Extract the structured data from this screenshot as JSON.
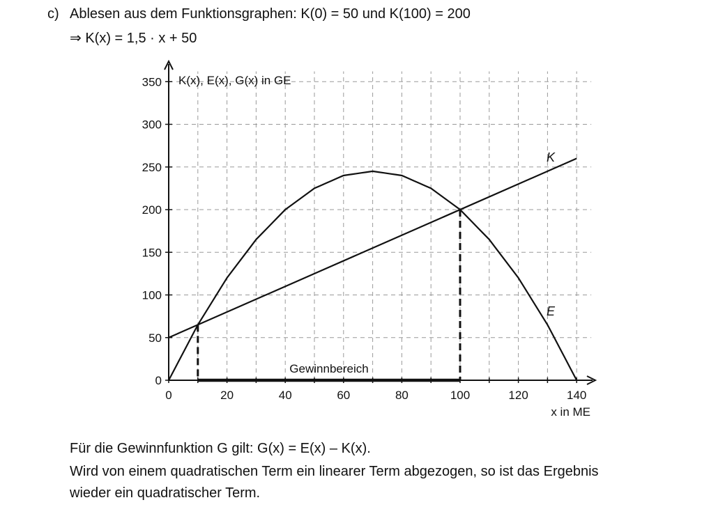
{
  "task": {
    "label": "c)",
    "line1": "Ablesen aus dem Funktionsgraphen:  K(0) = 50  und  K(100) = 200",
    "line2": "⇒  K(x) = 1,5 · x + 50"
  },
  "explanation": {
    "line1": "Für die Gewinnfunktion G gilt: G(x) = E(x) – K(x).",
    "line2": "Wird von einem quadratischen Term ein linearer Term abgezogen, so ist das Ergebnis",
    "line3": "wieder ein quadratischer Term."
  },
  "chart_data": {
    "type": "line",
    "ylabel": "K(x), E(x), G(x) in GE",
    "xlabel": "x in ME",
    "xlim": [
      0,
      140
    ],
    "ylim": [
      0,
      350
    ],
    "x_ticks": [
      0,
      20,
      40,
      60,
      80,
      100,
      120,
      140
    ],
    "y_ticks": [
      0,
      50,
      100,
      150,
      200,
      250,
      300,
      350
    ],
    "grid": true,
    "series": [
      {
        "name": "K",
        "x": [
          0,
          140
        ],
        "y": [
          50,
          260
        ]
      },
      {
        "name": "E",
        "x": [
          0,
          10,
          20,
          30,
          40,
          50,
          60,
          70,
          80,
          90,
          100,
          110,
          120,
          130,
          140
        ],
        "y": [
          0,
          65,
          120,
          165,
          200,
          225,
          240,
          245,
          240,
          225,
          200,
          165,
          120,
          65,
          0
        ]
      }
    ],
    "annotations": {
      "profit_region_label": "Gewinnbereich",
      "profit_region": [
        10,
        100
      ]
    }
  }
}
